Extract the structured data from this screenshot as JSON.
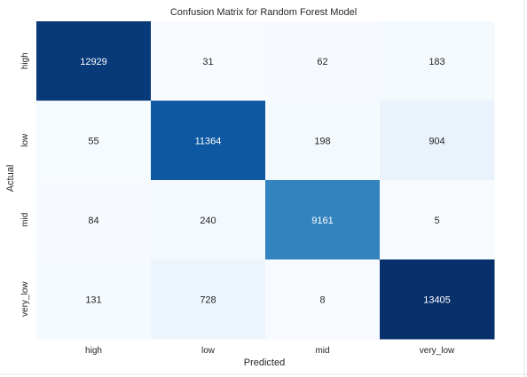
{
  "chart_data": {
    "type": "heatmap",
    "title": "Confusion Matrix for Random Forest Model",
    "xlabel": "Predicted",
    "ylabel": "Actual",
    "x_categories": [
      "high",
      "low",
      "mid",
      "very_low"
    ],
    "y_categories": [
      "high",
      "low",
      "mid",
      "very_low"
    ],
    "values": [
      [
        12929,
        31,
        62,
        183
      ],
      [
        55,
        11364,
        198,
        904
      ],
      [
        84,
        240,
        9161,
        5
      ],
      [
        131,
        728,
        8,
        13405
      ]
    ],
    "colormap": "Blues",
    "colorbar": false,
    "grid": false
  }
}
